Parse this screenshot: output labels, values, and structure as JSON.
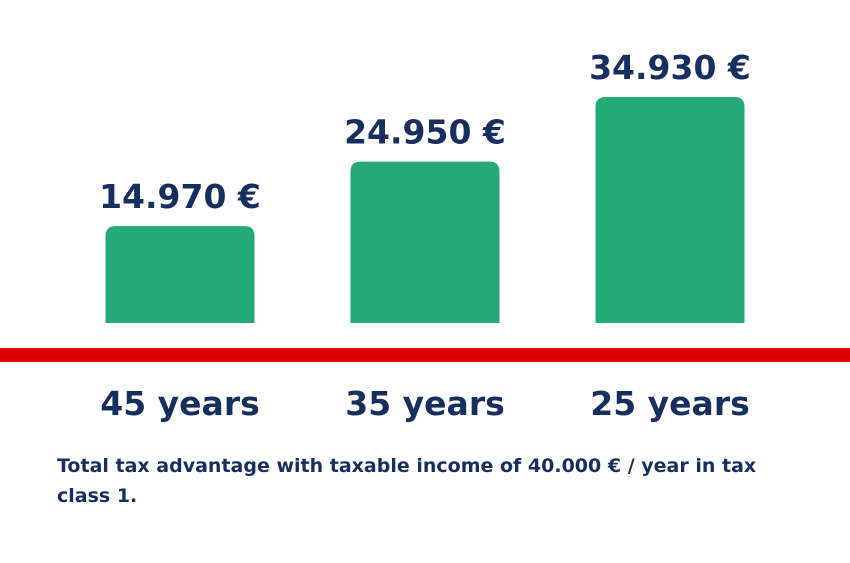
{
  "chart_data": {
    "type": "bar",
    "categories": [
      "45 years",
      "35 years",
      "25 years"
    ],
    "values": [
      14970,
      24950,
      34930
    ],
    "value_labels": [
      "14.970 €",
      "24.950 €",
      "34.930 €"
    ],
    "color": "#25aa76",
    "caption": "Total tax advantage with taxable income of 40.000 € / year in tax class 1."
  }
}
